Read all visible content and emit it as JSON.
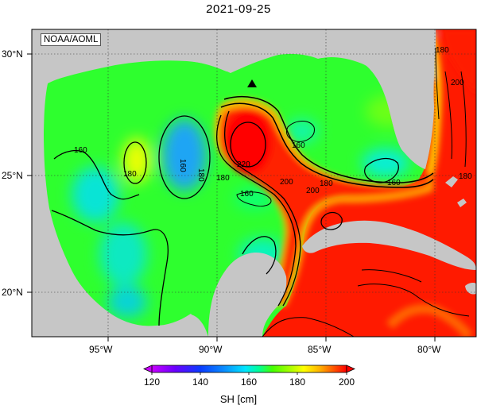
{
  "title": "2021-09-25",
  "credit": "NOAA/AOML",
  "axes": {
    "x_ticks": [
      "95°W",
      "90°W",
      "85°W",
      "80°W"
    ],
    "y_ticks": [
      "30°N",
      "25°N",
      "20°N"
    ]
  },
  "colorbar": {
    "label": "SH [cm]",
    "ticks": [
      "120",
      "140",
      "160",
      "180",
      "200"
    ],
    "colors": [
      "#c800ff",
      "#6a00ff",
      "#0a3cff",
      "#0a8cff",
      "#00e6ff",
      "#00ff96",
      "#46ff00",
      "#b4ff00",
      "#ffff00",
      "#ffb400",
      "#ff5a00",
      "#ff0000"
    ]
  },
  "contour_labels": [
    "160",
    "180",
    "180",
    "160",
    "180",
    "220",
    "200",
    "200",
    "180",
    "160",
    "160",
    "160",
    "180",
    "200",
    "180"
  ],
  "marker": "buoy-triangle",
  "colors": {
    "land": "#c6c6c6",
    "gulf_base": "#28ff28",
    "high": "#ff1a00"
  }
}
